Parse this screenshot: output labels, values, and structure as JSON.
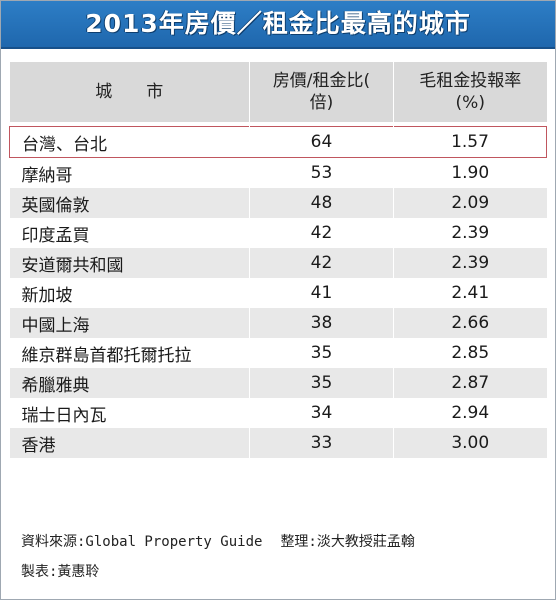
{
  "title": "2013年房價／租金比最高的城市",
  "headers": {
    "city": "城　　市",
    "ratio_line1": "房價/租金比(",
    "ratio_line2": "倍)",
    "yield_line1": "毛租金投報率",
    "yield_line2": "(%)"
  },
  "rows": [
    {
      "city": "台灣、台北",
      "ratio": "64",
      "yield": "1.57"
    },
    {
      "city": "摩納哥",
      "ratio": "53",
      "yield": "1.90"
    },
    {
      "city": "英國倫敦",
      "ratio": "48",
      "yield": "2.09"
    },
    {
      "city": "印度孟買",
      "ratio": "42",
      "yield": "2.39"
    },
    {
      "city": "安道爾共和國",
      "ratio": "42",
      "yield": "2.39"
    },
    {
      "city": "新加坡",
      "ratio": "41",
      "yield": "2.41"
    },
    {
      "city": "中國上海",
      "ratio": "38",
      "yield": "2.66"
    },
    {
      "city": "維京群島首都托爾托拉",
      "ratio": "35",
      "yield": "2.85"
    },
    {
      "city": "希臘雅典",
      "ratio": "35",
      "yield": "2.87"
    },
    {
      "city": "瑞士日內瓦",
      "ratio": "34",
      "yield": "2.94"
    },
    {
      "city": "香港",
      "ratio": "33",
      "yield": "3.00"
    }
  ],
  "footer": {
    "source": "資料來源:Global Property Guide",
    "compiled_by": "整理:淡大教授莊孟翰",
    "made_by": "製表:黃惠聆"
  }
}
